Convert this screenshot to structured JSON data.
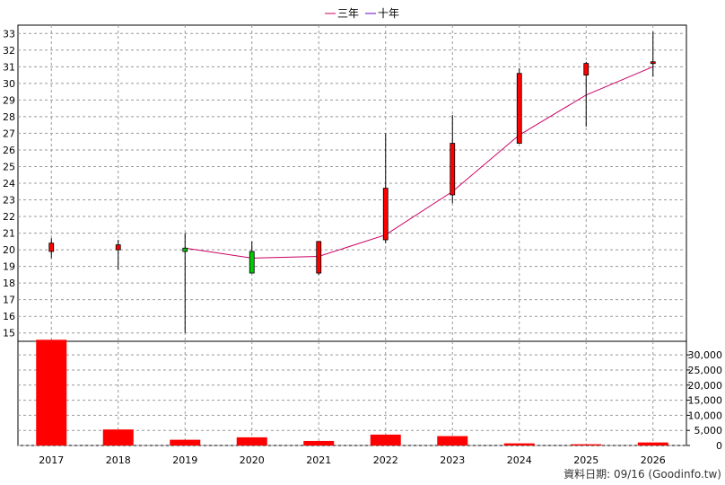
{
  "chart_data": [
    {
      "type": "candlestick",
      "legend": [
        "三年",
        "十年"
      ],
      "colors": {
        "up": "#ff0000",
        "down": "#00cc00",
        "wick": "#000000",
        "ma3": "#cc0066",
        "ma10": "#6600cc",
        "grid": "#999999"
      },
      "x": [
        "2017",
        "2018",
        "2019",
        "2020",
        "2021",
        "2022",
        "2023",
        "2024",
        "2025",
        "2026"
      ],
      "candles": [
        {
          "open": 19.9,
          "high": 20.7,
          "low": 19.5,
          "close": 20.4
        },
        {
          "open": 20.0,
          "high": 20.6,
          "low": 18.8,
          "close": 20.3
        },
        {
          "open": 20.1,
          "high": 21.0,
          "low": 15.0,
          "close": 19.9
        },
        {
          "open": 19.9,
          "high": 20.5,
          "low": 18.6,
          "close": 18.6
        },
        {
          "open": 18.6,
          "high": 20.5,
          "low": 18.5,
          "close": 20.5
        },
        {
          "open": 20.6,
          "high": 27.0,
          "low": 20.4,
          "close": 23.7
        },
        {
          "open": 23.3,
          "high": 28.1,
          "low": 22.8,
          "close": 26.4
        },
        {
          "open": 26.4,
          "high": 30.9,
          "low": 26.4,
          "close": 30.6
        },
        {
          "open": 30.5,
          "high": 31.3,
          "low": 27.4,
          "close": 31.2
        },
        {
          "open": 31.2,
          "high": 33.1,
          "low": 30.4,
          "close": 31.3
        }
      ],
      "ma3": [
        null,
        null,
        20.1,
        19.5,
        19.6,
        20.9,
        23.5,
        26.9,
        29.3,
        31.0
      ],
      "ylim": [
        14.5,
        33.5
      ],
      "yticks": [
        15,
        16,
        17,
        18,
        19,
        20,
        21,
        22,
        23,
        24,
        25,
        26,
        27,
        28,
        29,
        30,
        31,
        32,
        33
      ]
    },
    {
      "type": "bar",
      "x": [
        "2017",
        "2018",
        "2019",
        "2020",
        "2021",
        "2022",
        "2023",
        "2024",
        "2025",
        "2026"
      ],
      "values": [
        35000,
        5300,
        1900,
        2700,
        1500,
        3600,
        3100,
        700,
        400,
        1000
      ],
      "color": "#ff0000",
      "ylim": [
        0,
        34500
      ],
      "yticks": [
        0,
        5000,
        10000,
        15000,
        20000,
        25000,
        30000
      ],
      "ytick_labels": [
        "0",
        "5,000",
        "10,000",
        "15,000",
        "20,000",
        "25,000",
        "30,000"
      ]
    }
  ],
  "source_label": "資料日期: 09/16  (Goodinfo.tw)"
}
